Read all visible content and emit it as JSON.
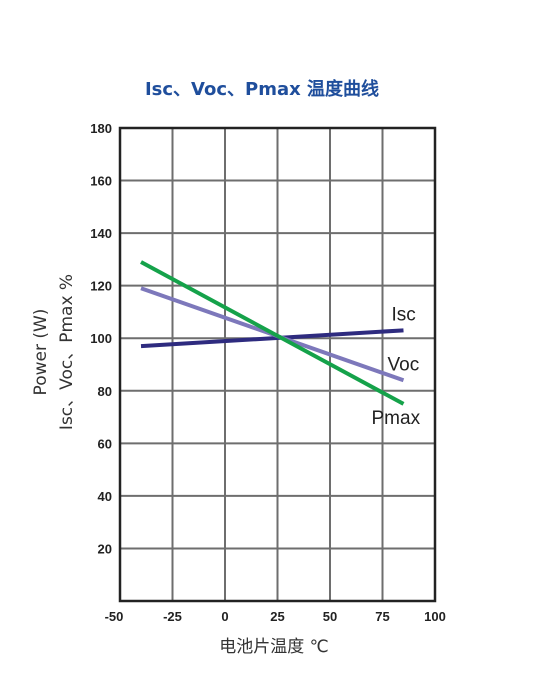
{
  "colors": {
    "title": "#1f4e9c",
    "grid": "#6e6e6e",
    "frame": "#222222",
    "isc": "#2e2b7f",
    "voc": "#7d78bb",
    "pmax": "#15a24a"
  },
  "chart_data": {
    "type": "line",
    "title": "Isc、Voc、Pmax 温度曲线",
    "xlabel": "电池片温度 ℃",
    "ylabel": [
      "Power (W)",
      "Isc、Voc、Pmax %"
    ],
    "xlim": [
      -50,
      100
    ],
    "ylim": [
      0,
      180
    ],
    "xticks": [
      -50,
      -25,
      0,
      25,
      50,
      75,
      100
    ],
    "xtick_labels": [
      "-50",
      "-25",
      "0",
      "25",
      "50",
      "75",
      "100"
    ],
    "yticks": [
      20,
      40,
      60,
      80,
      100,
      120,
      140,
      160,
      180
    ],
    "ytick_labels": [
      "20",
      "40",
      "60",
      "80",
      "100",
      "120",
      "140",
      "160",
      "180"
    ],
    "grid": true,
    "legend": "inline labels at line ends",
    "series": [
      {
        "name": "Isc",
        "color_key": "isc",
        "x": [
          -40,
          85
        ],
        "y": [
          97,
          103
        ]
      },
      {
        "name": "Voc",
        "color_key": "voc",
        "x": [
          -40,
          85
        ],
        "y": [
          119,
          84
        ]
      },
      {
        "name": "Pmax",
        "color_key": "pmax",
        "x": [
          -40,
          85
        ],
        "y": [
          129,
          75
        ]
      }
    ]
  }
}
